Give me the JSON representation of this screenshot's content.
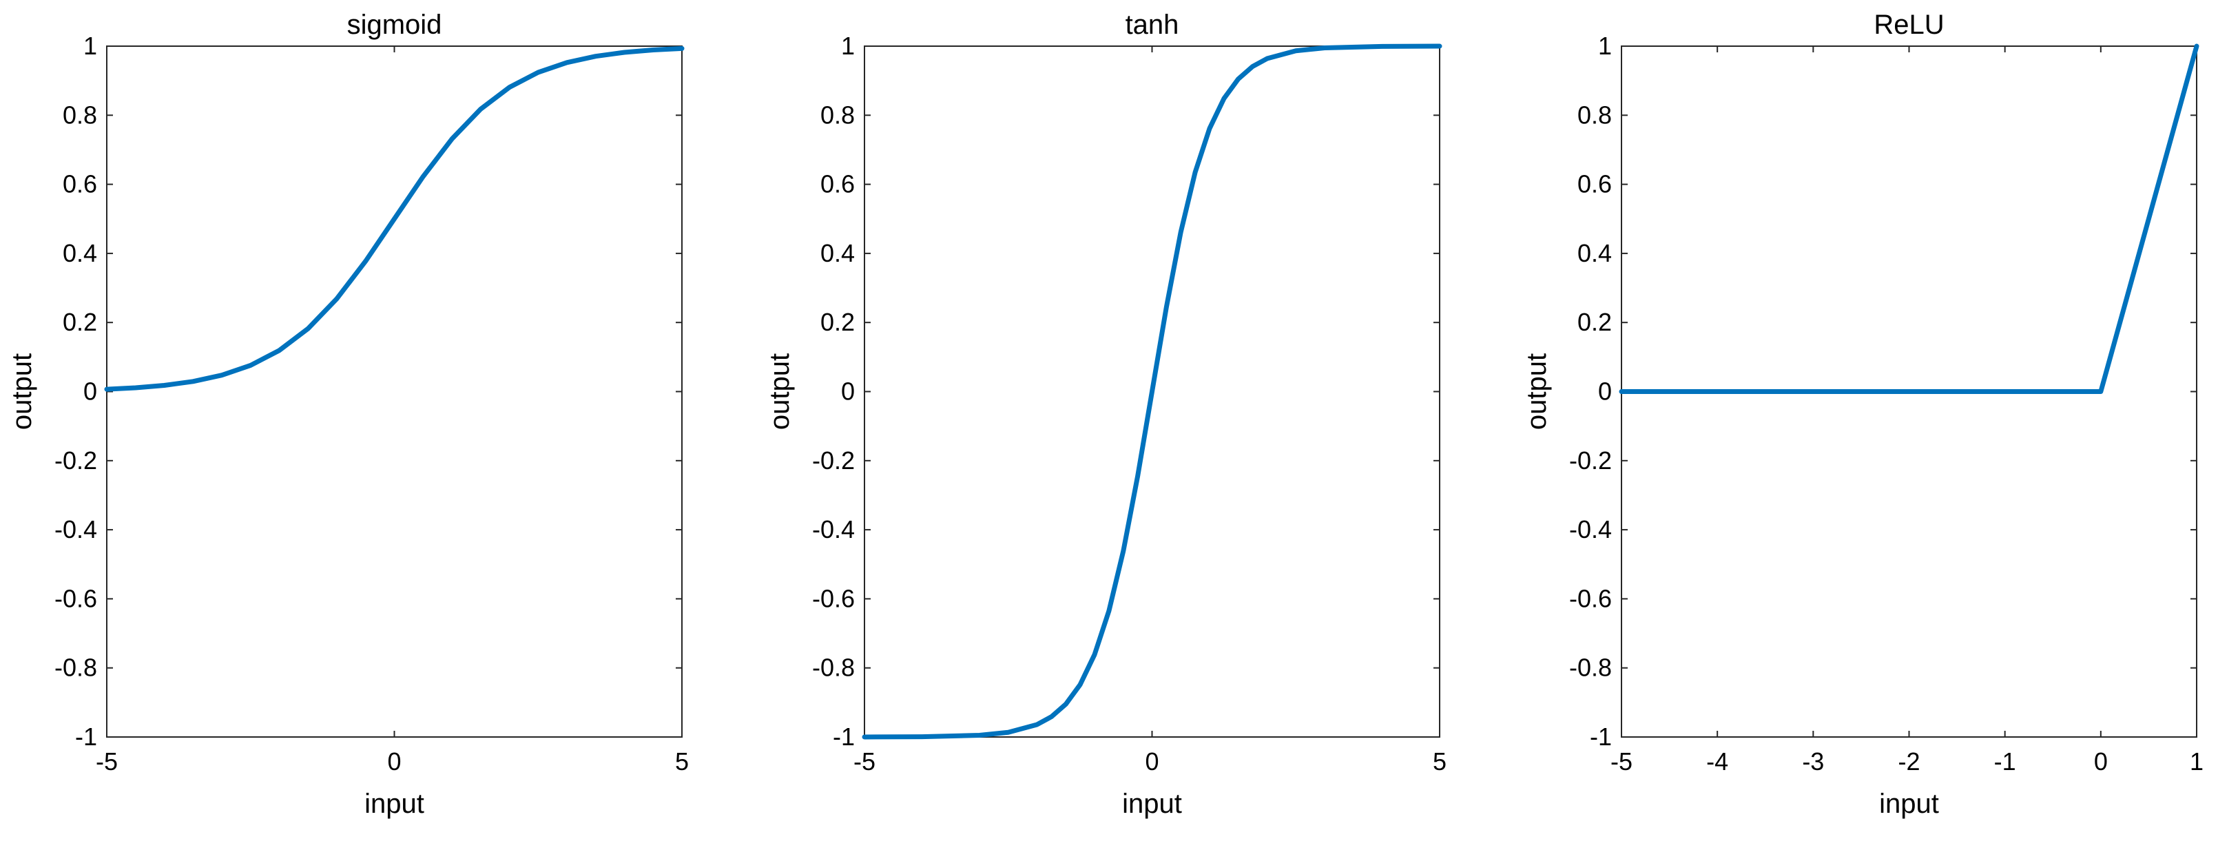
{
  "figure": {
    "background": "#ffffff",
    "line_color": "#0072BD"
  },
  "chart_data": [
    {
      "type": "line",
      "title": "sigmoid",
      "xlabel": "input",
      "ylabel": "output",
      "xlim": [
        -5,
        5
      ],
      "ylim": [
        -1,
        1
      ],
      "xticks": [
        -5,
        0,
        5
      ],
      "xtick_labels": [
        "-5",
        "0",
        "5"
      ],
      "yticks": [
        -1,
        -0.8,
        -0.6,
        -0.4,
        -0.2,
        0,
        0.2,
        0.4,
        0.6,
        0.8,
        1
      ],
      "ytick_labels": [
        "-1",
        "-0.8",
        "-0.6",
        "-0.4",
        "-0.2",
        "0",
        "0.2",
        "0.4",
        "0.6",
        "0.8",
        "1"
      ],
      "grid": false,
      "series": [
        {
          "color": "#0072BD",
          "x": [
            -5,
            -4.5,
            -4,
            -3.5,
            -3,
            -2.5,
            -2,
            -1.5,
            -1,
            -0.5,
            0,
            0.5,
            1,
            1.5,
            2,
            2.5,
            3,
            3.5,
            4,
            4.5,
            5
          ],
          "y": [
            0.0067,
            0.011,
            0.018,
            0.0293,
            0.0474,
            0.0759,
            0.1192,
            0.1824,
            0.2689,
            0.3775,
            0.5,
            0.6225,
            0.7311,
            0.8176,
            0.8808,
            0.9241,
            0.9526,
            0.9707,
            0.982,
            0.989,
            0.9933
          ]
        }
      ]
    },
    {
      "type": "line",
      "title": "tanh",
      "xlabel": "input",
      "ylabel": "output",
      "xlim": [
        -5,
        5
      ],
      "ylim": [
        -1,
        1
      ],
      "xticks": [
        -5,
        0,
        5
      ],
      "xtick_labels": [
        "-5",
        "0",
        "5"
      ],
      "yticks": [
        -1,
        -0.8,
        -0.6,
        -0.4,
        -0.2,
        0,
        0.2,
        0.4,
        0.6,
        0.8,
        1
      ],
      "ytick_labels": [
        "-1",
        "-0.8",
        "-0.6",
        "-0.4",
        "-0.2",
        "0",
        "0.2",
        "0.4",
        "0.6",
        "0.8",
        "1"
      ],
      "grid": false,
      "series": [
        {
          "color": "#0072BD",
          "x": [
            -5,
            -4,
            -3,
            -2.5,
            -2,
            -1.75,
            -1.5,
            -1.25,
            -1,
            -0.75,
            -0.5,
            -0.25,
            0,
            0.25,
            0.5,
            0.75,
            1,
            1.25,
            1.5,
            1.75,
            2,
            2.5,
            3,
            4,
            5
          ],
          "y": [
            -0.9999,
            -0.9993,
            -0.9951,
            -0.9866,
            -0.964,
            -0.9414,
            -0.9051,
            -0.8483,
            -0.7616,
            -0.6351,
            -0.4621,
            -0.2449,
            0,
            0.2449,
            0.4621,
            0.6351,
            0.7616,
            0.8483,
            0.9051,
            0.9414,
            0.964,
            0.9866,
            0.9951,
            0.9993,
            0.9999
          ]
        }
      ]
    },
    {
      "type": "line",
      "title": "ReLU",
      "xlabel": "input",
      "ylabel": "output",
      "xlim": [
        -5,
        1
      ],
      "ylim": [
        -1,
        1
      ],
      "xticks": [
        -5,
        -4,
        -3,
        -2,
        -1,
        0,
        1
      ],
      "xtick_labels": [
        "-5",
        "-4",
        "-3",
        "-2",
        "-1",
        "0",
        "1"
      ],
      "yticks": [
        -1,
        -0.8,
        -0.6,
        -0.4,
        -0.2,
        0,
        0.2,
        0.4,
        0.6,
        0.8,
        1
      ],
      "ytick_labels": [
        "-1",
        "-0.8",
        "-0.6",
        "-0.4",
        "-0.2",
        "0",
        "0.2",
        "0.4",
        "0.6",
        "0.8",
        "1"
      ],
      "grid": false,
      "series": [
        {
          "color": "#0072BD",
          "x": [
            -5,
            0,
            1
          ],
          "y": [
            0,
            0,
            1
          ]
        }
      ]
    }
  ]
}
